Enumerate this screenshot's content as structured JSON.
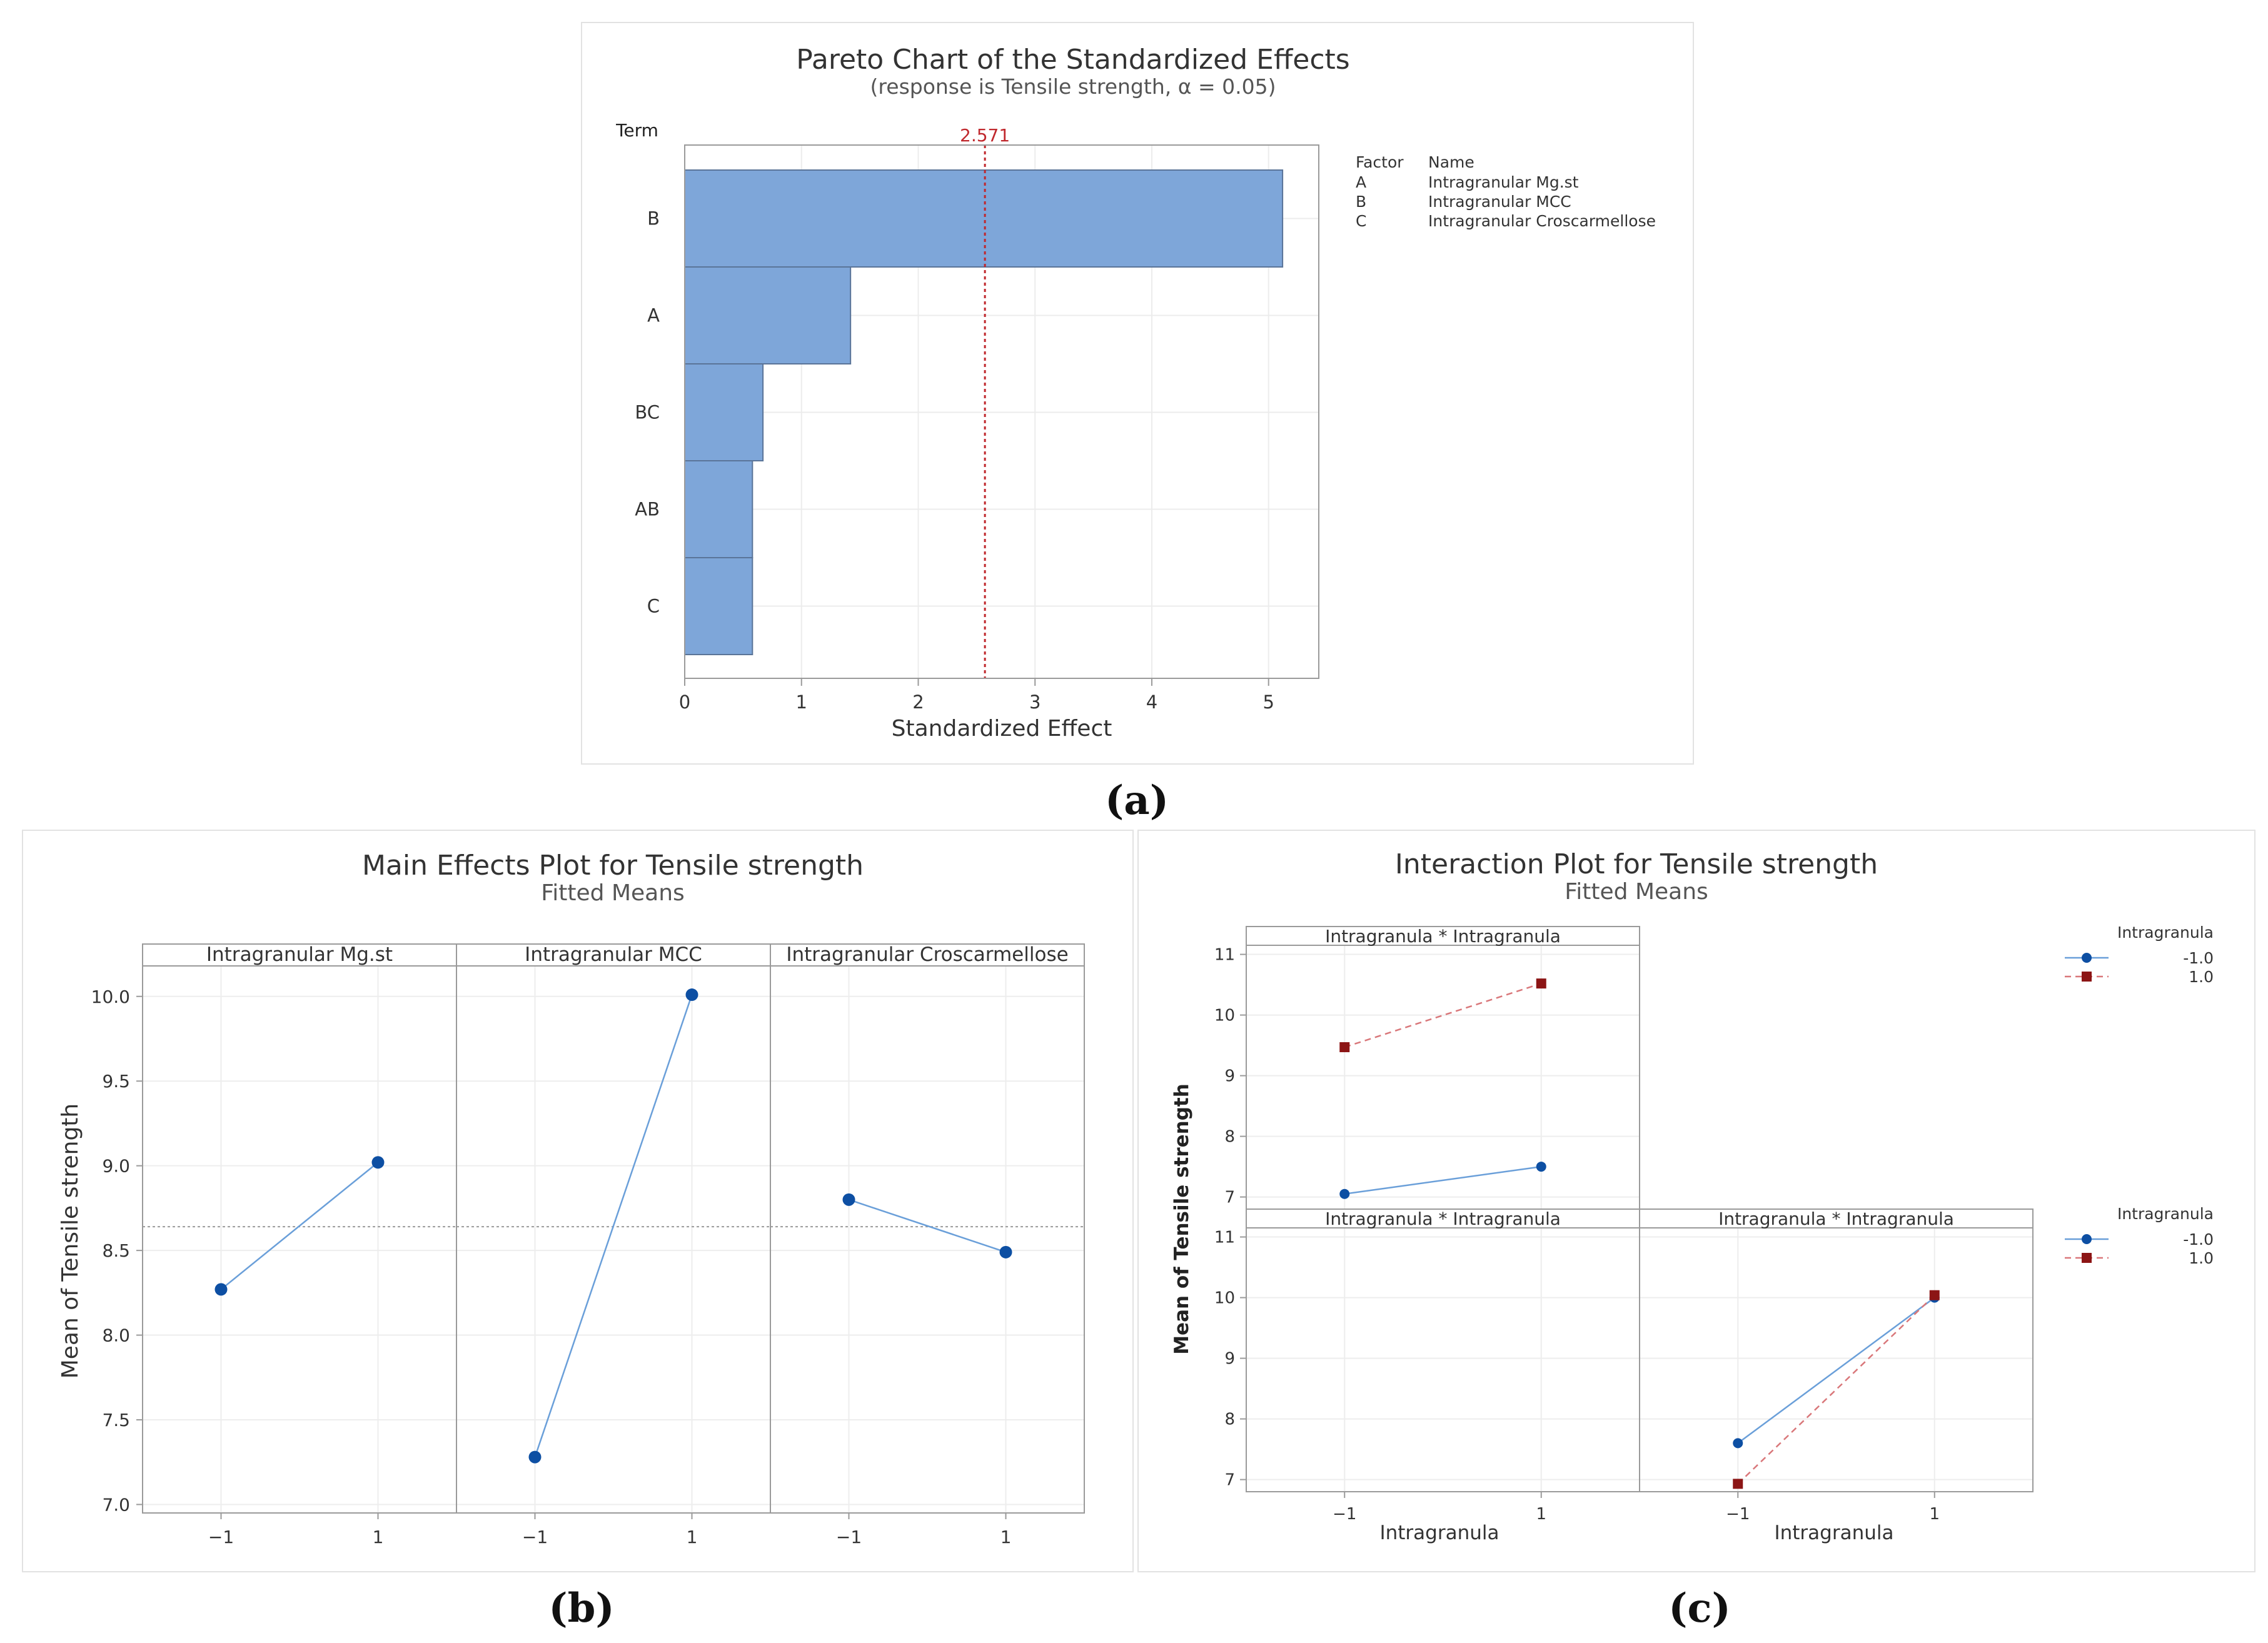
{
  "chart_data": [
    {
      "type": "bar",
      "orientation": "horizontal",
      "title": "Pareto Chart of the Standardized Effects",
      "subtitle": "(response is Tensile strength, α = 0.05)",
      "axis_title_terms": "Term",
      "xlabel": "Standardized Effect",
      "categories": [
        "B",
        "A",
        "BC",
        "AB",
        "C"
      ],
      "values": [
        5.12,
        1.42,
        0.67,
        0.58,
        0.58
      ],
      "xlim": [
        0,
        5.43
      ],
      "xticks": [
        "0",
        "1",
        "2",
        "3",
        "4",
        "5"
      ],
      "reference_line": {
        "value": 2.571,
        "label": "2.571",
        "color": "#c0282d"
      },
      "legend": {
        "headers": [
          "Factor",
          "Name"
        ],
        "rows": [
          [
            "A",
            "Intragranular Mg.st"
          ],
          [
            "B",
            "Intragranular MCC"
          ],
          [
            "C",
            "Intragranular Croscarmellose"
          ]
        ]
      },
      "bar_color": "#7ea6d9",
      "panel_label": "(a)"
    },
    {
      "type": "line",
      "title": "Main Effects Plot for Tensile strength",
      "subtitle": "Fitted Means",
      "ylabel": "Mean of Tensile strength",
      "ylim": [
        6.95,
        10.18
      ],
      "yticks": [
        "10.0",
        "9.5",
        "9.0",
        "8.5",
        "8.0",
        "7.5",
        "7.0"
      ],
      "xticks": [
        "−1",
        "1"
      ],
      "overall_mean": 8.64,
      "panels": [
        {
          "name": "Intragranular Mg.st",
          "x": [
            -1,
            1
          ],
          "y": [
            8.27,
            9.02
          ]
        },
        {
          "name": "Intragranular MCC",
          "x": [
            -1,
            1
          ],
          "y": [
            7.28,
            10.01
          ]
        },
        {
          "name": "Intragranular Croscarmellose",
          "x": [
            -1,
            1
          ],
          "y": [
            8.8,
            8.49
          ]
        }
      ],
      "line_color": "#6a9fd9",
      "point_color": "#0d4fa3",
      "panel_label": "(b)"
    },
    {
      "type": "line",
      "title": "Interaction Plot for Tensile strength",
      "subtitle": "Fitted Means",
      "ylabel": "Mean of Tensile strength",
      "xlabel": "Intragranula",
      "yticks": [
        "11",
        "10",
        "9",
        "8",
        "7"
      ],
      "ylim": [
        6.8,
        11.15
      ],
      "xticks": [
        "−1",
        "1"
      ],
      "panels": [
        {
          "name": "Intragranula * Intragranula",
          "series": [
            {
              "name": "-1.0",
              "x": [
                -1,
                1
              ],
              "y": [
                7.05,
                7.5
              ]
            },
            {
              "name": "1.0",
              "x": [
                -1,
                1
              ],
              "y": [
                9.47,
                10.52
              ]
            }
          ]
        },
        {
          "name": "Intragranula * Intragranula",
          "series": []
        },
        {
          "name": "Intragranula * Intragranula",
          "series": [
            {
              "name": "-1.0",
              "x": [
                -1,
                1
              ],
              "y": [
                7.6,
                10.0
              ]
            },
            {
              "name": "1.0",
              "x": [
                -1,
                1
              ],
              "y": [
                6.93,
                10.04
              ]
            }
          ]
        }
      ],
      "legend": {
        "title": "Intragranula",
        "entries": [
          "-1.0",
          "1.0"
        ]
      },
      "colors": {
        "series1": "#0d4fa3",
        "series1_line": "#6a9fd9",
        "series2": "#8c1515",
        "series2_line": "#d9777a"
      },
      "panel_label": "(c)"
    }
  ]
}
